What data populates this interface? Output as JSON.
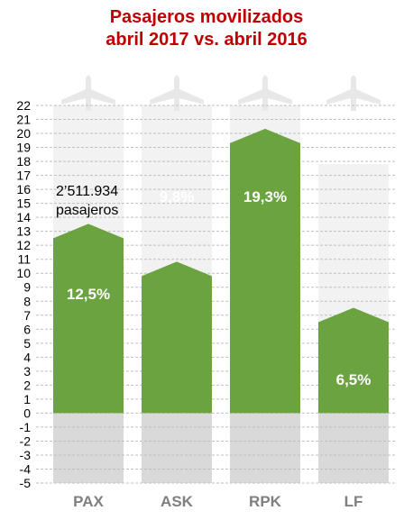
{
  "chart_data": {
    "type": "bar",
    "title": "Pasajeros movilizados",
    "subtitle": "abril  2017 vs. abril 2016",
    "categories": [
      "PAX",
      "ASK",
      "RPK",
      "LF"
    ],
    "values": [
      12.5,
      9.8,
      19.3,
      6.5
    ],
    "value_labels": [
      "12,5%",
      "9,8%",
      "19,3%",
      "6,5%"
    ],
    "ylim": [
      -5,
      22
    ],
    "yticks": [
      -5,
      -4,
      -3,
      -2,
      -1,
      0,
      1,
      2,
      3,
      4,
      5,
      6,
      7,
      8,
      9,
      10,
      11,
      12,
      13,
      14,
      15,
      16,
      17,
      18,
      19,
      20,
      21,
      22
    ],
    "grid": true,
    "annotation": {
      "line1": "2’511.934",
      "line2": "pasajeros"
    },
    "colors": {
      "bar": "#6aa33f",
      "background_column": "#f2f2f2",
      "negative_band": "#d9d9d9",
      "plane": "#e8e8e8",
      "grid": "#bfbfbf",
      "title": "#c00000",
      "category_label": "#7f7f7f"
    },
    "icons": [
      "airplane-icon",
      "airplane-icon",
      "airplane-icon",
      "airplane-icon"
    ]
  }
}
